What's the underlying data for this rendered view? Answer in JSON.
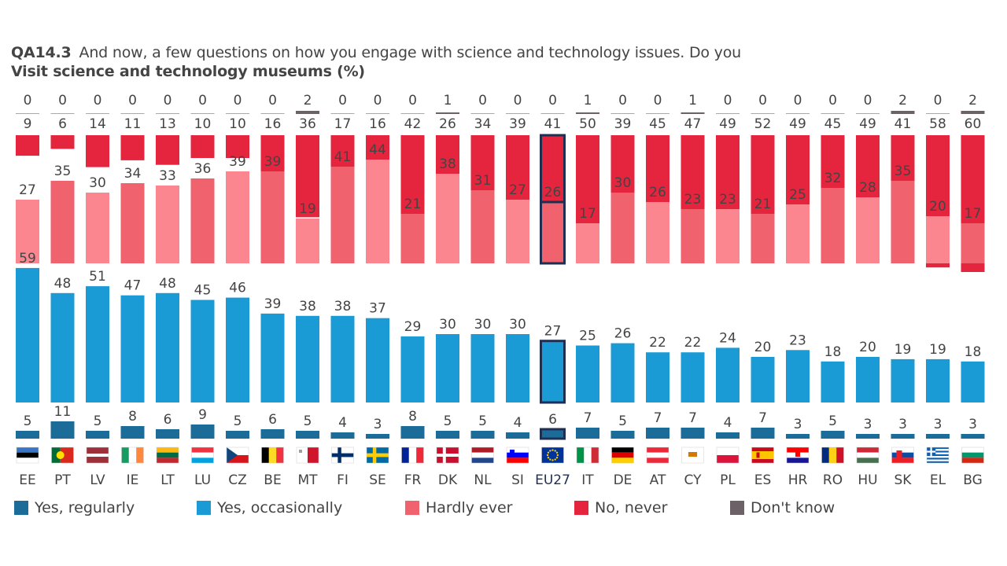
{
  "header": {
    "code": "QA14.3",
    "question": "And now, a few questions on how you engage with science and technology issues. Do you",
    "subtitle": "Visit science and technology museums  (%)"
  },
  "colors": {
    "regularly": "#1b6c98",
    "occasionally": "#1a9bd6",
    "hardly_ever_light": "#fb8690",
    "hardly_ever_dark": "#f0626e",
    "never": "#e5243e",
    "dont_know": "#6b6167",
    "highlight_border": "#1f2f52"
  },
  "legend": [
    {
      "key": "regularly",
      "label": "Yes, regularly",
      "color": "#1b6c98"
    },
    {
      "key": "occasionally",
      "label": "Yes, occasionally",
      "color": "#1a9bd6"
    },
    {
      "key": "hardly_ever",
      "label": "Hardly ever",
      "color": "#f0626e"
    },
    {
      "key": "never",
      "label": "No, never",
      "color": "#e5243e"
    },
    {
      "key": "dont_know",
      "label": "Don't know",
      "color": "#6b6167"
    }
  ],
  "flags": {
    "EE": "flag-estonia-icon",
    "PT": "flag-portugal-icon",
    "LV": "flag-latvia-icon",
    "IE": "flag-ireland-icon",
    "LT": "flag-lithuania-icon",
    "LU": "flag-luxembourg-icon",
    "CZ": "flag-czechia-icon",
    "BE": "flag-belgium-icon",
    "MT": "flag-malta-icon",
    "FI": "flag-finland-icon",
    "SE": "flag-sweden-icon",
    "FR": "flag-france-icon",
    "DK": "flag-denmark-icon",
    "NL": "flag-netherlands-icon",
    "SI": "flag-slovenia-icon",
    "EU27": "flag-eu-icon",
    "IT": "flag-italy-icon",
    "DE": "flag-germany-icon",
    "AT": "flag-austria-icon",
    "CY": "flag-cyprus-icon",
    "PL": "flag-poland-icon",
    "ES": "flag-spain-icon",
    "HR": "flag-croatia-icon",
    "RO": "flag-romania-icon",
    "HU": "flag-hungary-icon",
    "SK": "flag-slovakia-icon",
    "EL": "flag-greece-icon",
    "BG": "flag-bulgaria-icon"
  },
  "chart_data": {
    "type": "bar",
    "stacked": false,
    "title": "Visit science and technology museums  (%)",
    "highlight_category": "EU27",
    "categories": [
      "EE",
      "PT",
      "LV",
      "IE",
      "LT",
      "LU",
      "CZ",
      "BE",
      "MT",
      "FI",
      "SE",
      "FR",
      "DK",
      "NL",
      "SI",
      "EU27",
      "IT",
      "DE",
      "AT",
      "CY",
      "PL",
      "ES",
      "HR",
      "RO",
      "HU",
      "SK",
      "EL",
      "BG"
    ],
    "series": [
      {
        "name": "Don't know",
        "key": "dont_know",
        "values": [
          0,
          0,
          0,
          0,
          0,
          0,
          0,
          0,
          2,
          0,
          0,
          0,
          1,
          0,
          0,
          0,
          1,
          0,
          0,
          1,
          0,
          0,
          0,
          0,
          0,
          2,
          0,
          2
        ]
      },
      {
        "name": "No, never",
        "key": "never",
        "values": [
          9,
          6,
          14,
          11,
          13,
          10,
          10,
          16,
          36,
          17,
          16,
          42,
          26,
          34,
          39,
          41,
          50,
          39,
          45,
          47,
          49,
          52,
          49,
          45,
          49,
          41,
          58,
          60
        ]
      },
      {
        "name": "Hardly ever",
        "key": "hardly_ever",
        "values": [
          27,
          35,
          30,
          34,
          33,
          36,
          39,
          39,
          19,
          41,
          44,
          21,
          38,
          31,
          27,
          26,
          17,
          30,
          26,
          23,
          23,
          21,
          25,
          32,
          28,
          35,
          20,
          17
        ]
      },
      {
        "name": "Yes, occasionally",
        "key": "occasionally",
        "values": [
          59,
          48,
          51,
          47,
          48,
          45,
          46,
          39,
          38,
          38,
          37,
          29,
          30,
          30,
          30,
          27,
          25,
          26,
          22,
          22,
          24,
          20,
          23,
          18,
          20,
          19,
          19,
          18
        ]
      },
      {
        "name": "Yes, regularly",
        "key": "regularly",
        "values": [
          5,
          11,
          5,
          8,
          6,
          9,
          5,
          6,
          5,
          4,
          3,
          8,
          5,
          5,
          4,
          6,
          7,
          5,
          7,
          7,
          4,
          7,
          3,
          5,
          3,
          3,
          3,
          3
        ]
      }
    ],
    "hardly_ever_shade": [
      "light",
      "dark",
      "light",
      "dark",
      "light",
      "dark",
      "light",
      "dark",
      "light",
      "dark",
      "light",
      "dark",
      "light",
      "dark",
      "light",
      "dark",
      "light",
      "dark",
      "light",
      "dark",
      "light",
      "dark",
      "light",
      "dark",
      "light",
      "dark",
      "light",
      "dark"
    ],
    "grid": false,
    "legend_position": "bottom"
  }
}
